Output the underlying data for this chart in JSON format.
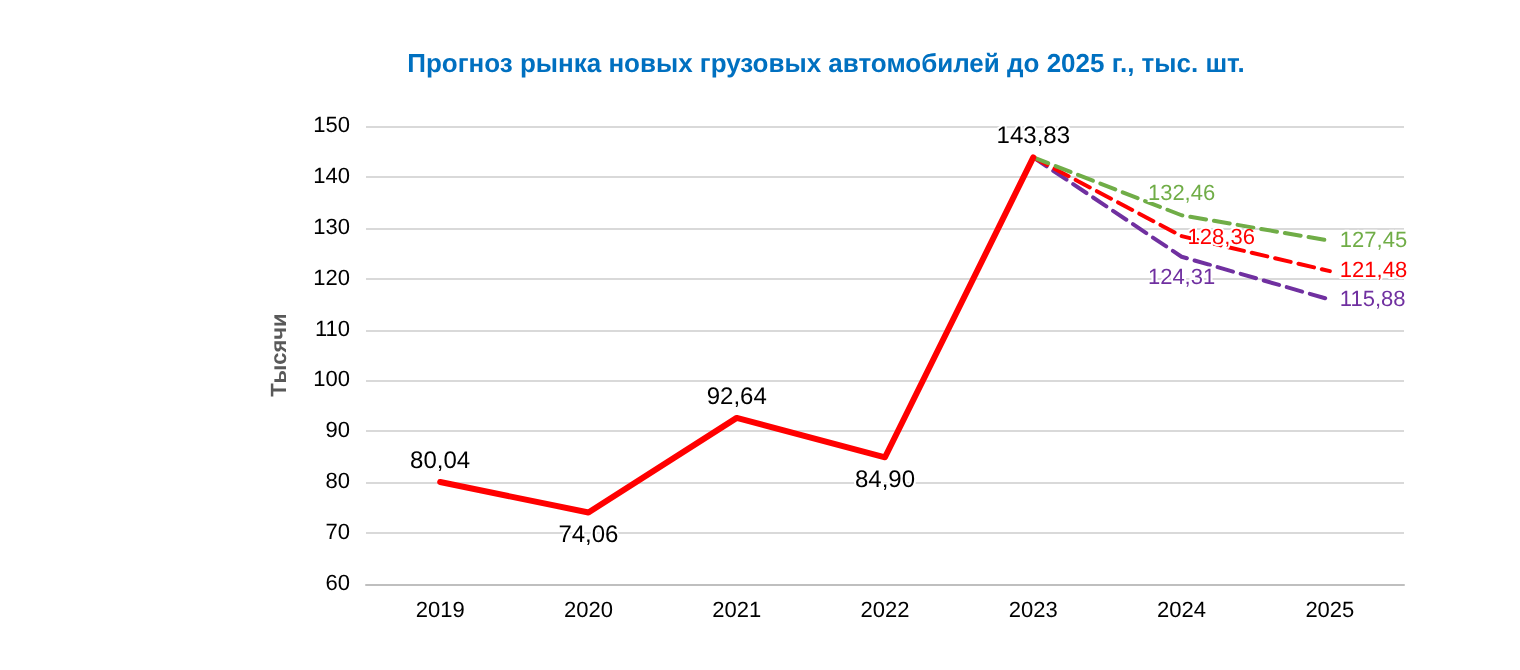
{
  "chart_data": {
    "type": "line",
    "title": "Прогноз рынка новых грузовых автомобилей до 2025 г., тыс. шт.",
    "ylabel": "Тысячи",
    "categories": [
      "2019",
      "2020",
      "2021",
      "2022",
      "2023",
      "2024",
      "2025"
    ],
    "series": [
      {
        "color": "#ff0000",
        "line_style": "solid",
        "values": [
          80.04,
          74.06,
          92.64,
          84.9,
          143.83,
          null,
          null
        ],
        "value_labels": [
          "80,04",
          "74,06",
          "92,64",
          "84,90",
          "143,83",
          null,
          null
        ]
      },
      {
        "color": "#70ad47",
        "line_style": "dashed",
        "values": [
          null,
          null,
          null,
          null,
          143.83,
          132.46,
          127.45
        ],
        "value_labels": [
          null,
          null,
          null,
          null,
          null,
          "132,46",
          "127,45"
        ]
      },
      {
        "color": "#ff0000",
        "line_style": "dashed",
        "values": [
          null,
          null,
          null,
          null,
          143.83,
          128.36,
          121.48
        ],
        "value_labels": [
          null,
          null,
          null,
          null,
          null,
          "128,36",
          "121,48"
        ]
      },
      {
        "color": "#7030a0",
        "line_style": "dashed",
        "values": [
          null,
          null,
          null,
          null,
          143.83,
          124.31,
          115.88
        ],
        "value_labels": [
          null,
          null,
          null,
          null,
          null,
          "124,31",
          "115,88"
        ]
      }
    ],
    "ylim": [
      60,
      150
    ],
    "yticks": [
      60,
      70,
      80,
      90,
      100,
      110,
      120,
      130,
      140,
      150
    ],
    "grid": "y",
    "marker": "none"
  }
}
